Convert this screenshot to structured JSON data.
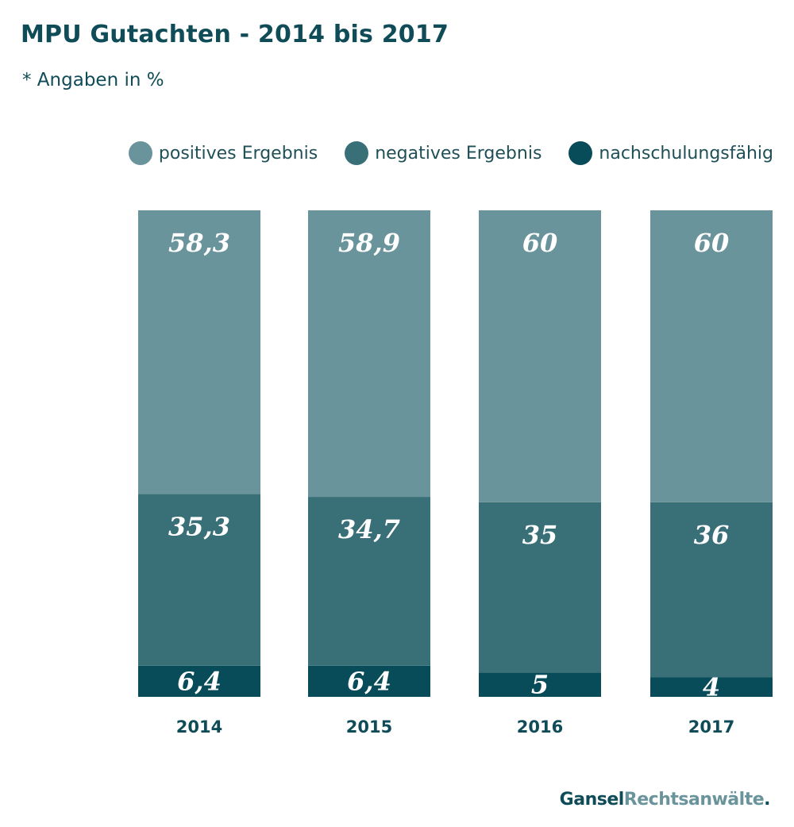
{
  "chart_data": {
    "type": "bar",
    "stacked": true,
    "title": "MPU Gutachten - 2014 bis 2017",
    "subtitle": "* Angaben in %",
    "categories": [
      "2014",
      "2015",
      "2016",
      "2017"
    ],
    "series": [
      {
        "name": "nachschulungsfähig",
        "values": [
          6.4,
          6.4,
          5,
          4
        ],
        "labels": [
          "6,4",
          "6,4",
          "5",
          "4"
        ],
        "color": "#084c59"
      },
      {
        "name": "negatives Ergebnis",
        "values": [
          35.3,
          34.7,
          35,
          36
        ],
        "labels": [
          "35,3",
          "34,7",
          "35",
          "36"
        ],
        "color": "#397078"
      },
      {
        "name": "positives Ergebnis",
        "values": [
          58.3,
          58.9,
          60,
          60
        ],
        "labels": [
          "58,3",
          "58,9",
          "60",
          "60"
        ],
        "color": "#6a949b"
      }
    ],
    "ylim": [
      0,
      100
    ],
    "grid": false,
    "legend_position": "top-right"
  },
  "legend": [
    {
      "label": "positives Ergebnis",
      "color": "#6a949b"
    },
    {
      "label": "negatives Ergebnis",
      "color": "#397078"
    },
    {
      "label": "nachschulungsfähig",
      "color": "#084c59"
    }
  ],
  "brand": {
    "part1": "Gansel",
    "part2": "Rechtsanwälte",
    "dot": "."
  }
}
